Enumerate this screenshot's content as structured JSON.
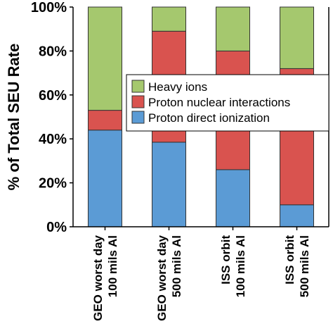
{
  "chart_data": {
    "type": "bar",
    "stacked": true,
    "title": "",
    "xlabel": "",
    "ylabel": "% of Total SEU Rate",
    "ylim": [
      0,
      100
    ],
    "yticks": [
      "0%",
      "20%",
      "40%",
      "60%",
      "80%",
      "100%"
    ],
    "categories": [
      [
        "GEO worst day",
        "100 mils Al"
      ],
      [
        "GEO worst day",
        "500 mils Al"
      ],
      [
        "ISS orbit",
        "100 mils Al"
      ],
      [
        "ISS orbit",
        "500 mils Al"
      ]
    ],
    "series": [
      {
        "name": "Proton direct ionization",
        "color": "#5b9bd5",
        "values": [
          44,
          38.5,
          26,
          10
        ]
      },
      {
        "name": "Proton nuclear interactions",
        "color": "#d9534f",
        "values": [
          9,
          50.5,
          54,
          62
        ]
      },
      {
        "name": "Heavy ions",
        "color": "#a5c86e",
        "values": [
          47,
          11,
          20,
          28
        ]
      }
    ],
    "legend": {
      "placement": "center-right",
      "order": [
        "Heavy ions",
        "Proton nuclear interactions",
        "Proton direct ionization"
      ]
    },
    "grid": false
  }
}
